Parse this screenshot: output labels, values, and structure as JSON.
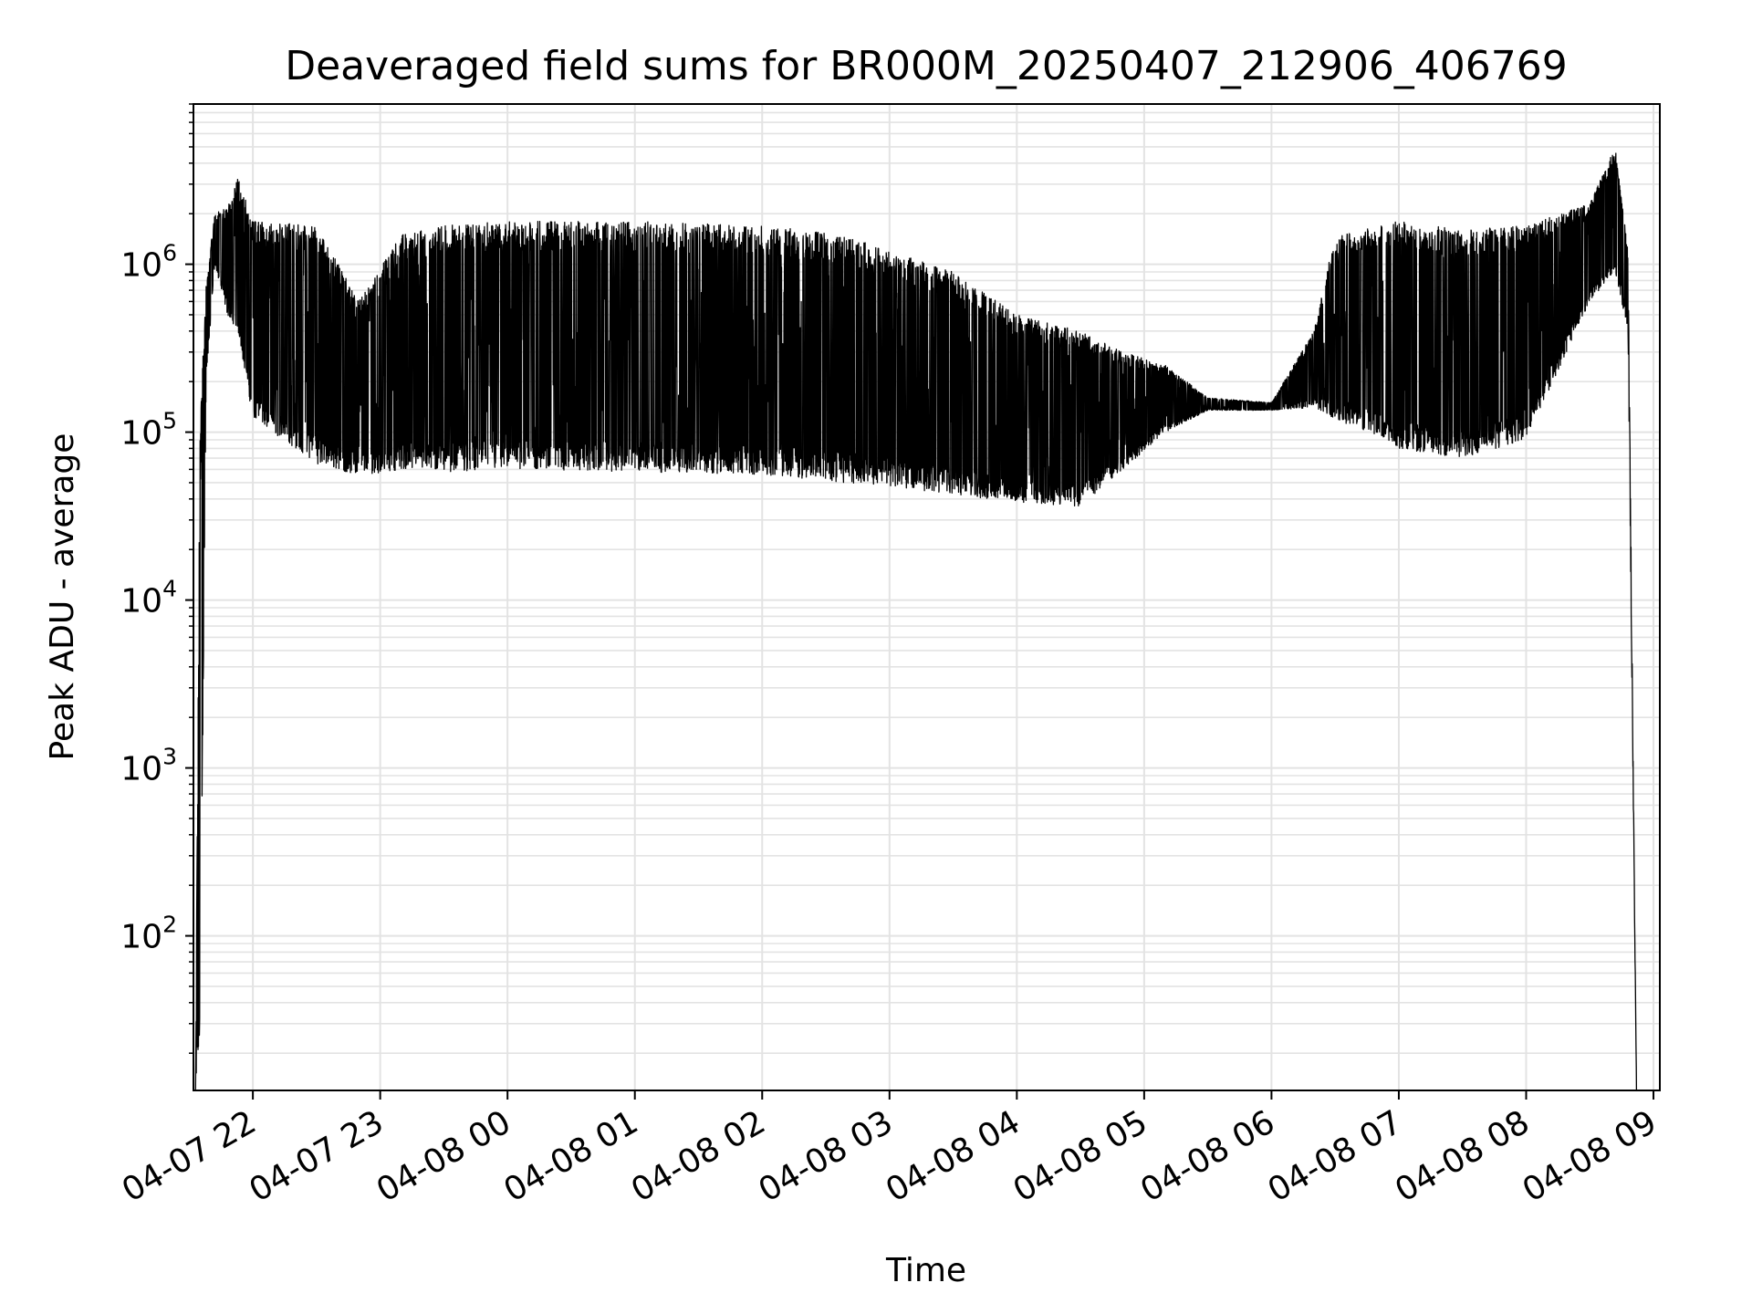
{
  "chart_data": {
    "type": "line",
    "title": "Deaveraged field sums for BR000M_20250407_212906_406769",
    "xlabel": "Time",
    "ylabel": "Peak ADU - average",
    "yscale": "log",
    "xlim": [
      "2025-04-07 21:32",
      "2025-04-08 09:03"
    ],
    "ylim": [
      12,
      9000000
    ],
    "grid": true,
    "x_ticks": [
      {
        "t": "2025-04-07 22:00",
        "label": "04-07 22"
      },
      {
        "t": "2025-04-07 23:00",
        "label": "04-07 23"
      },
      {
        "t": "2025-04-08 00:00",
        "label": "04-08 00"
      },
      {
        "t": "2025-04-08 01:00",
        "label": "04-08 01"
      },
      {
        "t": "2025-04-08 02:00",
        "label": "04-08 02"
      },
      {
        "t": "2025-04-08 03:00",
        "label": "04-08 03"
      },
      {
        "t": "2025-04-08 04:00",
        "label": "04-08 04"
      },
      {
        "t": "2025-04-08 05:00",
        "label": "04-08 05"
      },
      {
        "t": "2025-04-08 06:00",
        "label": "04-08 06"
      },
      {
        "t": "2025-04-08 07:00",
        "label": "04-08 07"
      },
      {
        "t": "2025-04-08 08:00",
        "label": "04-08 08"
      },
      {
        "t": "2025-04-08 09:00",
        "label": "04-08 09"
      }
    ],
    "y_ticks": [
      {
        "value": 100,
        "base": "10",
        "exp": "2"
      },
      {
        "value": 1000,
        "base": "10",
        "exp": "3"
      },
      {
        "value": 10000,
        "base": "10",
        "exp": "4"
      },
      {
        "value": 100000,
        "base": "10",
        "exp": "5"
      },
      {
        "value": 1000000,
        "base": "10",
        "exp": "6"
      }
    ],
    "series": [
      {
        "color": "#000000",
        "envelope": [
          {
            "t": "2025-04-07 21:33",
            "low": 12,
            "high": 12
          },
          {
            "t": "2025-04-07 21:35",
            "low": 20,
            "high": 100000
          },
          {
            "t": "2025-04-07 21:38",
            "low": 200000,
            "high": 800000
          },
          {
            "t": "2025-04-07 21:42",
            "low": 1000000,
            "high": 2000000
          },
          {
            "t": "2025-04-07 21:48",
            "low": 500000,
            "high": 2200000
          },
          {
            "t": "2025-04-07 21:53",
            "low": 400000,
            "high": 3300000
          },
          {
            "t": "2025-04-07 22:00",
            "low": 120000,
            "high": 1800000
          },
          {
            "t": "2025-04-07 22:30",
            "low": 65000,
            "high": 1700000
          },
          {
            "t": "2025-04-07 22:50",
            "low": 55000,
            "high": 600000
          },
          {
            "t": "2025-04-07 23:10",
            "low": 60000,
            "high": 1500000
          },
          {
            "t": "2025-04-07 23:30",
            "low": 58000,
            "high": 1700000
          },
          {
            "t": "2025-04-08 00:00",
            "low": 60000,
            "high": 1800000
          },
          {
            "t": "2025-04-08 01:00",
            "low": 58000,
            "high": 1800000
          },
          {
            "t": "2025-04-08 02:00",
            "low": 56000,
            "high": 1700000
          },
          {
            "t": "2025-04-08 02:40",
            "low": 50000,
            "high": 1500000
          },
          {
            "t": "2025-04-08 03:00",
            "low": 48000,
            "high": 1200000
          },
          {
            "t": "2025-04-08 03:30",
            "low": 42000,
            "high": 900000
          },
          {
            "t": "2025-04-08 04:00",
            "low": 38000,
            "high": 500000
          },
          {
            "t": "2025-04-08 04:30",
            "low": 36000,
            "high": 400000
          },
          {
            "t": "2025-04-08 04:50",
            "low": 60000,
            "high": 300000
          },
          {
            "t": "2025-04-08 05:10",
            "low": 100000,
            "high": 250000
          },
          {
            "t": "2025-04-08 05:30",
            "low": 135000,
            "high": 160000
          },
          {
            "t": "2025-04-08 06:00",
            "low": 135000,
            "high": 150000
          },
          {
            "t": "2025-04-08 06:20",
            "low": 140000,
            "high": 400000
          },
          {
            "t": "2025-04-08 06:30",
            "low": 120000,
            "high": 1500000
          },
          {
            "t": "2025-04-08 07:00",
            "low": 80000,
            "high": 1800000
          },
          {
            "t": "2025-04-08 07:30",
            "low": 70000,
            "high": 1600000
          },
          {
            "t": "2025-04-08 08:00",
            "low": 90000,
            "high": 1700000
          },
          {
            "t": "2025-04-08 08:30",
            "low": 600000,
            "high": 2300000
          },
          {
            "t": "2025-04-08 08:42",
            "low": 900000,
            "high": 5000000
          },
          {
            "t": "2025-04-08 08:48",
            "low": 400000,
            "high": 1200000
          },
          {
            "t": "2025-04-08 08:52",
            "low": 12,
            "high": 12
          }
        ]
      }
    ]
  }
}
